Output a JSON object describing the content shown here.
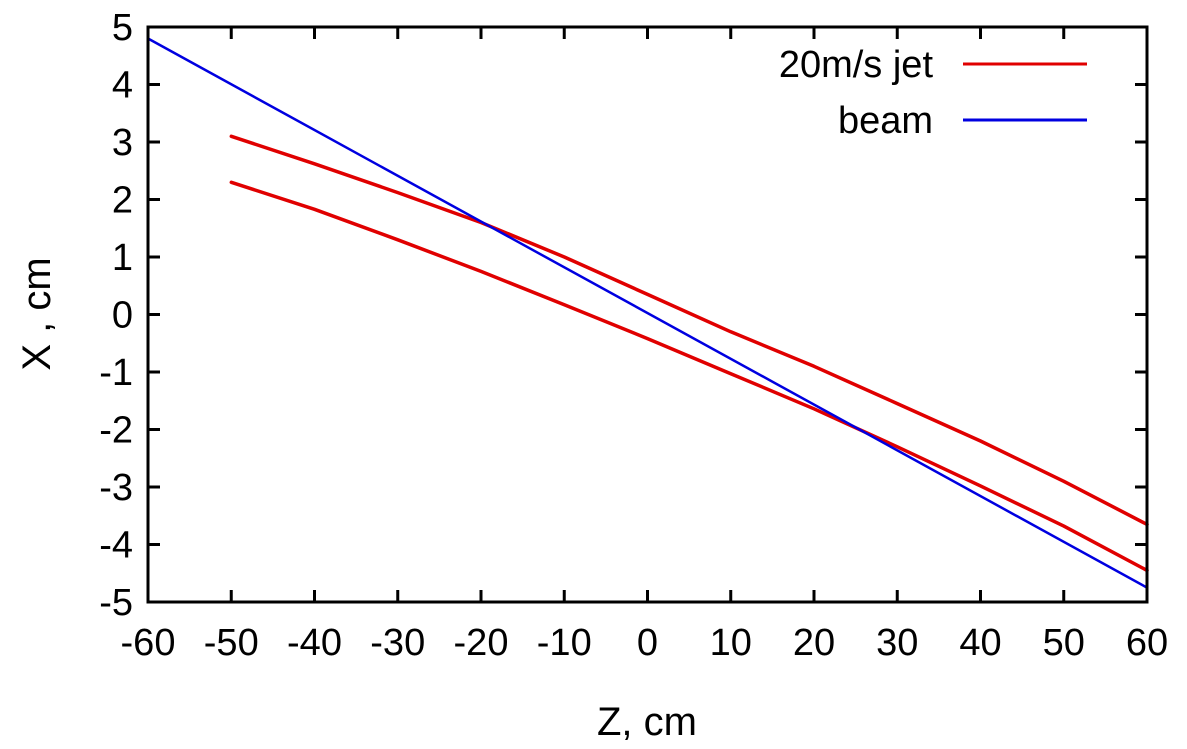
{
  "chart_data": {
    "type": "line",
    "xlabel": "Z, cm",
    "ylabel": "X , cm",
    "xlim": [
      -60,
      60
    ],
    "ylim": [
      -5,
      5
    ],
    "xticks": [
      -60,
      -50,
      -40,
      -30,
      -20,
      -10,
      0,
      10,
      20,
      30,
      40,
      50,
      60
    ],
    "yticks": [
      -5,
      -4,
      -3,
      -2,
      -1,
      0,
      1,
      2,
      3,
      4,
      5
    ],
    "grid": false,
    "legend_position": "top-right",
    "series": [
      {
        "name": "20m/s jet",
        "color": "#e00000",
        "segments": [
          {
            "x": [
              -50,
              -40,
              -30,
              -20,
              -10,
              0,
              10,
              20,
              30,
              40,
              50,
              60
            ],
            "y": [
              3.1,
              2.62,
              2.12,
              1.6,
              1.0,
              0.35,
              -0.3,
              -0.9,
              -1.55,
              -2.2,
              -2.9,
              -3.65
            ]
          },
          {
            "x": [
              -50,
              -40,
              -30,
              -20,
              -10,
              0,
              10,
              20,
              30,
              40,
              50,
              60
            ],
            "y": [
              2.3,
              1.83,
              1.3,
              0.75,
              0.17,
              -0.42,
              -1.03,
              -1.64,
              -2.3,
              -2.98,
              -3.68,
              -4.45
            ]
          }
        ]
      },
      {
        "name": "beam",
        "color": "#0000e0",
        "segments": [
          {
            "x": [
              -60,
              60
            ],
            "y": [
              4.8,
              -4.75
            ]
          }
        ]
      }
    ]
  }
}
